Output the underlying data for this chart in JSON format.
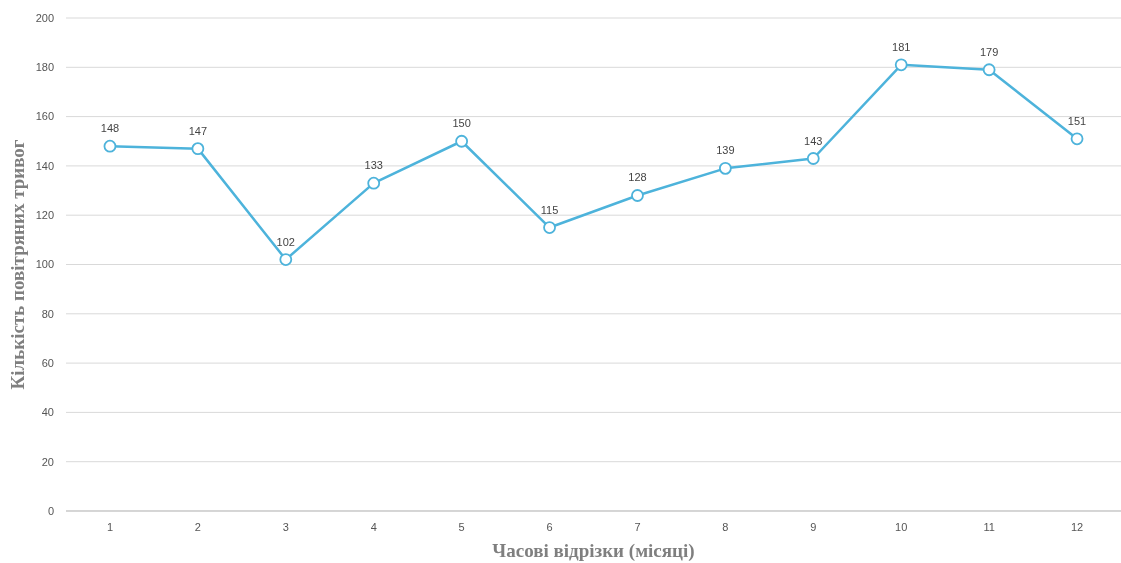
{
  "chart_data": {
    "type": "line",
    "xlabel": "Часові відрізки (місяці)",
    "ylabel": "Кількість повітряних тривог",
    "categories": [
      "1",
      "2",
      "3",
      "4",
      "5",
      "6",
      "7",
      "8",
      "9",
      "10",
      "11",
      "12"
    ],
    "series": [
      {
        "color": "#4db3db",
        "values": [
          148,
          147,
          102,
          133,
          150,
          115,
          128,
          139,
          143,
          181,
          179,
          151
        ]
      }
    ],
    "ylim": [
      0,
      200
    ],
    "yticks": [
      0,
      20,
      40,
      60,
      80,
      100,
      120,
      140,
      160,
      180,
      200
    ],
    "grid": "y",
    "marker": "circle",
    "data_labels": true
  }
}
